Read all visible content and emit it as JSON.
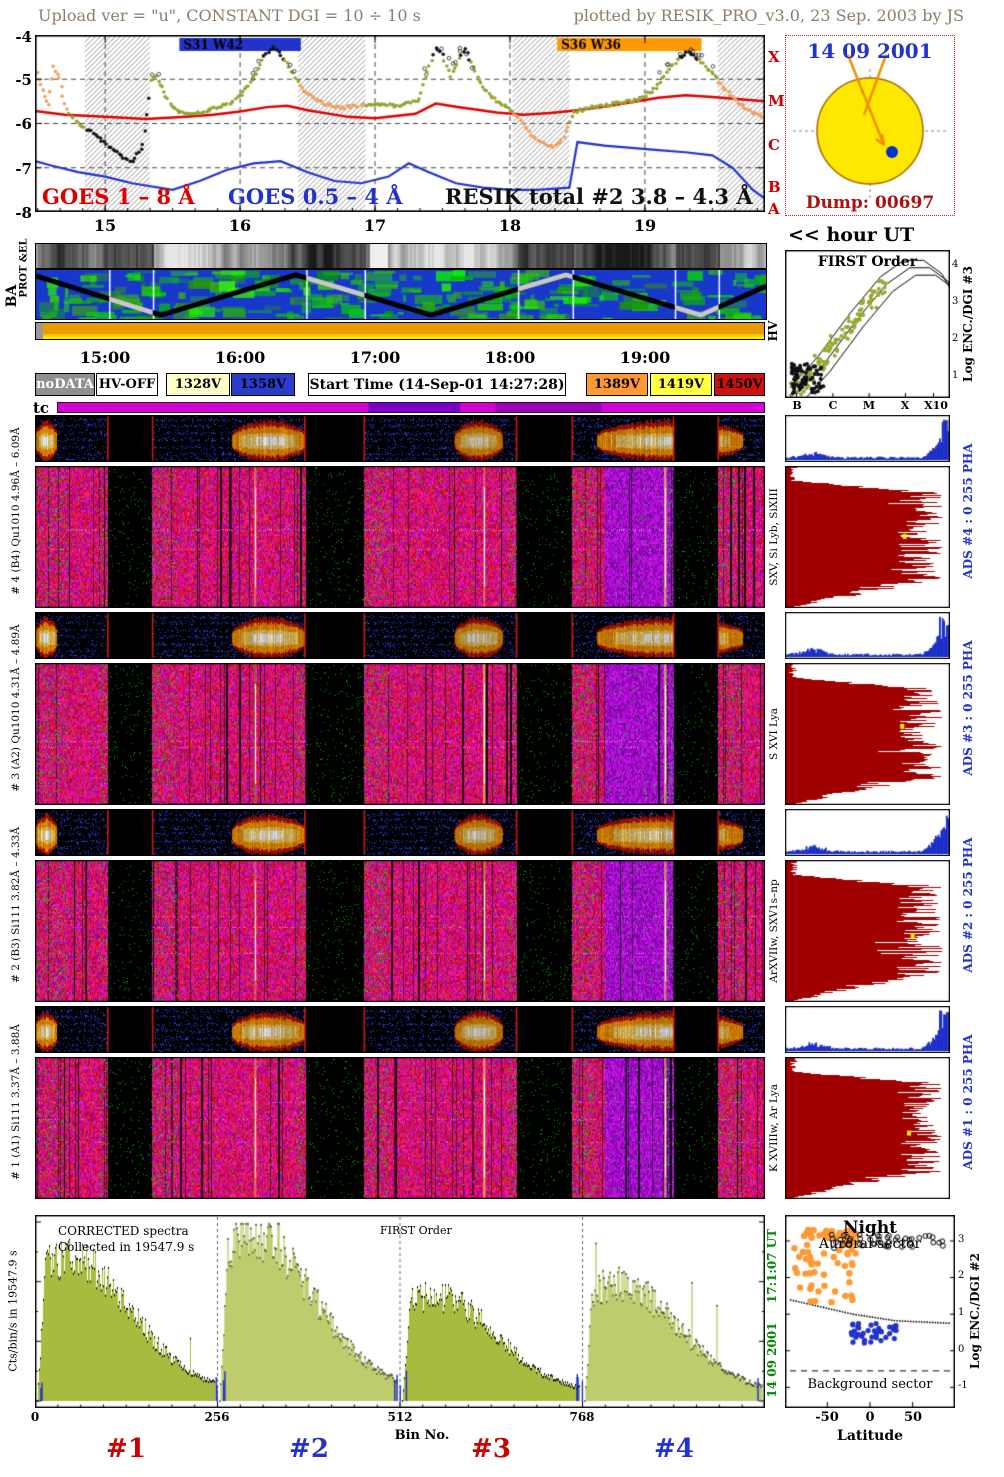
{
  "header": {
    "left": "Upload ver = \"u\", CONSTANT  DGI =  10 ÷  10 s",
    "right": "plotted by RESIK_PRO_v3.0, 23 Sep. 2003 by JS"
  },
  "goes": {
    "y_ticks": [
      "-4",
      "-5",
      "-6",
      "-7",
      "-8"
    ],
    "x_ticks": [
      "15",
      "16",
      "17",
      "18",
      "19"
    ],
    "class_letters": [
      "X",
      "M",
      "C",
      "B",
      "A"
    ],
    "flare_bars": [
      {
        "label": "S31 W42",
        "color": "#2233cc",
        "start_hour": 15.55,
        "end_hour": 16.45
      },
      {
        "label": "S36 W36",
        "color": "#ff9900",
        "start_hour": 18.35,
        "end_hour": 19.42
      }
    ],
    "series_labels": [
      {
        "label": "GOES 1 – 8 Å",
        "color": "#dd0000"
      },
      {
        "label": "GOES 0.5 – 4 Å",
        "color": "#2233cc"
      },
      {
        "label": "RESIK total #2  3.8 – 4.3 Å",
        "color": "#111111"
      }
    ]
  },
  "sun": {
    "date": "14 09 2001",
    "dump": "Dump: 00697"
  },
  "hour_ut_label": "<< hour UT",
  "strips": {
    "prot_label": "PROT &EL",
    "ba_label": "BA",
    "hv_label": "HV"
  },
  "time_ticks": [
    "15:00",
    "16:00",
    "17:00",
    "18:00",
    "19:00"
  ],
  "legend": {
    "boxes": [
      {
        "label": "noDATA",
        "bg": "#909090",
        "fg": "#ffffff"
      },
      {
        "label": "HV-OFF",
        "bg": "#ffffff",
        "fg": "#000000"
      },
      {
        "label": "1328V",
        "bg": "#ffffc8",
        "fg": "#000000"
      },
      {
        "label": "1358V",
        "bg": "#2a3ccc",
        "fg": "#000000"
      },
      {
        "label": "Start Time (14-Sep-01 14:27:28)",
        "bg": "#ffffff",
        "fg": "#000000"
      },
      {
        "label": "1389V",
        "bg": "#ff9933",
        "fg": "#000000"
      },
      {
        "label": "1419V",
        "bg": "#ffff44",
        "fg": "#000000"
      },
      {
        "label": "1450V",
        "bg": "#cc1111",
        "fg": "#000000"
      }
    ]
  },
  "tc_label": "tc",
  "spectrograms": {
    "pairs": [
      {
        "id": 4,
        "label": "# 4 (B4) Qu1010 4.96Å – 6.09Å",
        "line_label": "SXV, Si Lyb, SiXIII",
        "ads_label": "ADS #4 :      0 255      PHA"
      },
      {
        "id": 3,
        "label": "# 3 (A2) Qu1010 4.31Å – 4.89Å",
        "line_label": "S XVI Lya",
        "ads_label": "ADS #3 :      0 255      PHA"
      },
      {
        "id": 2,
        "label": "# 2 (B3) Si111 3.82Å – 4.33Å",
        "line_label": "ArXVIIw, SXV1s–np",
        "ads_label": "ADS #2 :      0 255      PHA"
      },
      {
        "id": 1,
        "label": "# 1 (A1) Si111 3.37Å – 3.88Å",
        "line_label": "K XVIIIw, Ar Lya",
        "ads_label": "ADS #1 :      0 255      PHA"
      }
    ]
  },
  "first_order": {
    "title": "FIRST Order",
    "x_labels": [
      "B",
      "C",
      "M",
      "X",
      "X10"
    ],
    "y_ticks": [
      "4",
      "3",
      "2",
      "1"
    ],
    "y_label": "Log ENC./DGI #3"
  },
  "bottom_spectra": {
    "title1": "CORRECTED spectra",
    "title2": "Collected in 19547.9 s",
    "title3": "FIRST Order",
    "y_label": "Cts/bin/s in 19547.9 s",
    "x_ticks": [
      "0",
      "256",
      "512",
      "768"
    ],
    "x_label": "Bin No.",
    "segment_labels": [
      {
        "label": "#1",
        "color": "#cc0000"
      },
      {
        "label": "#2",
        "color": "#2233cc"
      },
      {
        "label": "#3",
        "color": "#cc0000"
      },
      {
        "label": "#4",
        "color": "#2233cc"
      }
    ]
  },
  "green_side_texts": [
    "17:1:07 UT",
    "14 09 2001"
  ],
  "aurora": {
    "title": "Night",
    "subtitle": "Auroral sector",
    "background_label": "Background sector",
    "x_ticks": [
      "-50",
      "0",
      "50"
    ],
    "x_label": "Latitude",
    "y_ticks": [
      "3",
      "2",
      "1",
      "0",
      "-1"
    ],
    "y_label": "Log ENC./DGI #2"
  },
  "chart_data": {
    "goes_panel": {
      "type": "line",
      "x_unit": "hour UT",
      "x_range": [
        14.48,
        19.89
      ],
      "y_unit": "log10 flux, GOES class A-X",
      "y_range": [
        -8,
        -4
      ],
      "night_bands_hours": [
        [
          14.85,
          15.33
        ],
        [
          16.43,
          16.93
        ],
        [
          18.02,
          18.44
        ],
        [
          19.54,
          19.89
        ]
      ],
      "series": [
        {
          "name": "GOES 1 - 8 A",
          "color": "#dd0000",
          "x": [
            14.48,
            14.7,
            15.0,
            15.3,
            15.6,
            15.8,
            16.0,
            16.2,
            16.35,
            16.5,
            16.8,
            17.0,
            17.3,
            17.45,
            17.6,
            17.9,
            18.1,
            18.3,
            18.5,
            18.7,
            18.9,
            19.1,
            19.3,
            19.5,
            19.7,
            19.89
          ],
          "y": [
            -5.72,
            -5.8,
            -5.85,
            -5.9,
            -5.85,
            -5.8,
            -5.73,
            -5.63,
            -5.6,
            -5.7,
            -5.85,
            -5.88,
            -5.78,
            -5.55,
            -5.62,
            -5.75,
            -5.8,
            -5.76,
            -5.7,
            -5.62,
            -5.52,
            -5.42,
            -5.36,
            -5.4,
            -5.45,
            -5.5
          ]
        },
        {
          "name": "GOES 0.5 - 4 A",
          "color": "#2233cc",
          "x": [
            14.48,
            14.6,
            14.8,
            15.0,
            15.2,
            15.5,
            15.7,
            15.9,
            16.1,
            16.3,
            16.5,
            16.7,
            16.9,
            17.1,
            17.25,
            17.4,
            17.6,
            17.8,
            18.0,
            18.2,
            18.44,
            18.5,
            18.7,
            18.9,
            19.1,
            19.3,
            19.5,
            19.65,
            19.8,
            19.89
          ],
          "y": [
            -6.85,
            -6.95,
            -7.1,
            -7.2,
            -7.35,
            -7.5,
            -7.3,
            -7.05,
            -6.9,
            -6.85,
            -7.1,
            -7.3,
            -7.35,
            -7.2,
            -6.9,
            -7.1,
            -7.35,
            -7.45,
            -7.5,
            -7.5,
            -7.45,
            -6.42,
            -6.5,
            -6.55,
            -6.6,
            -6.65,
            -6.72,
            -7.0,
            -7.5,
            -7.7
          ]
        },
        {
          "name": "RESIK total #2 3.8 - 4.3 A",
          "style": "dots",
          "color": "#96a432",
          "x": [
            14.5,
            14.54,
            14.58,
            14.62,
            14.66,
            14.7,
            14.75,
            14.8,
            14.88,
            14.96,
            15.04,
            15.12,
            15.2,
            15.28,
            15.34,
            15.38,
            15.42,
            15.48,
            15.55,
            15.65,
            15.75,
            15.85,
            15.95,
            16.05,
            16.12,
            16.18,
            16.24,
            16.3,
            16.38,
            16.46,
            16.55,
            16.65,
            16.75,
            16.85,
            16.95,
            17.05,
            17.15,
            17.25,
            17.33,
            17.4,
            17.45,
            17.5,
            17.56,
            17.62,
            17.67,
            17.73,
            17.8,
            17.9,
            18.0,
            18.08,
            18.16,
            18.24,
            18.32,
            18.4,
            18.48,
            18.58,
            18.68,
            18.78,
            18.88,
            18.98,
            19.08,
            19.16,
            19.24,
            19.32,
            19.42,
            19.52,
            19.62,
            19.72,
            19.82,
            19.89
          ],
          "y": [
            -4.85,
            -5.25,
            -5.6,
            -4.7,
            -5.0,
            -5.55,
            -5.85,
            -6.0,
            -6.15,
            -6.35,
            -6.55,
            -6.75,
            -6.85,
            -6.5,
            -5.05,
            -4.95,
            -5.2,
            -5.55,
            -5.75,
            -5.8,
            -5.72,
            -5.62,
            -5.5,
            -5.2,
            -4.85,
            -4.5,
            -4.28,
            -4.45,
            -4.8,
            -5.2,
            -5.45,
            -5.58,
            -5.65,
            -5.62,
            -5.58,
            -5.55,
            -5.6,
            -5.55,
            -5.45,
            -4.7,
            -4.3,
            -4.45,
            -4.95,
            -4.55,
            -4.32,
            -4.75,
            -5.2,
            -5.5,
            -5.68,
            -5.95,
            -6.25,
            -6.45,
            -6.55,
            -6.3,
            -5.75,
            -5.65,
            -5.6,
            -5.55,
            -5.5,
            -5.42,
            -5.2,
            -4.85,
            -4.55,
            -4.38,
            -4.6,
            -4.95,
            -5.3,
            -5.6,
            -5.78,
            -5.85
          ]
        }
      ]
    },
    "ba_zigzag": [
      [
        0,
        0.12
      ],
      [
        0.171,
        0.92
      ],
      [
        0.356,
        0.1
      ],
      [
        0.541,
        0.92
      ],
      [
        0.726,
        0.1
      ],
      [
        0.911,
        0.92
      ],
      [
        1.0,
        0.33
      ]
    ],
    "spectrogram_time_axis": {
      "gap_fractions": [
        [
          0.1,
          0.16
        ],
        [
          0.37,
          0.45
        ],
        [
          0.66,
          0.735
        ],
        [
          0.875,
          0.935
        ]
      ],
      "flare_fractions": [
        [
          0.0,
          0.03
        ],
        [
          0.27,
          0.37
        ],
        [
          0.575,
          0.64
        ],
        [
          0.77,
          0.97
        ]
      ]
    },
    "ads_pha": {
      "x_range": [
        0,
        255
      ],
      "blue_peak_fraction": 0.95
    },
    "first_order_curve": [
      [
        0.03,
        0.93
      ],
      [
        0.2,
        0.72
      ],
      [
        0.4,
        0.42
      ],
      [
        0.58,
        0.18
      ],
      [
        0.72,
        0.07
      ],
      [
        0.84,
        0.07
      ],
      [
        0.95,
        0.16
      ],
      [
        1.0,
        0.26
      ]
    ],
    "corrected_spectra": {
      "type": "area",
      "x_label": "Bin No.",
      "collected_seconds": 19547.9,
      "segments": [
        {
          "label": "#1",
          "bins": [
            0,
            255
          ],
          "peak_rel": 0.8
        },
        {
          "label": "#2",
          "bins": [
            256,
            511
          ],
          "peak_rel": 0.92
        },
        {
          "label": "#3",
          "bins": [
            512,
            767
          ],
          "peak_rel": 0.58
        },
        {
          "label": "#4",
          "bins": [
            768,
            1023
          ],
          "peak_rel": 0.65
        }
      ]
    },
    "aurora_scatter": {
      "type": "scatter",
      "x_label": "Latitude",
      "x_range": [
        -95,
        95
      ],
      "y_label": "Log ENC./DGI #2",
      "y_range": [
        -1.4,
        3.6
      ],
      "background_level": -0.55,
      "background_curve": [
        [
          -95,
          1.4
        ],
        [
          -20,
          1.0
        ],
        [
          30,
          0.82
        ],
        [
          95,
          0.75
        ]
      ],
      "clusters": [
        {
          "name": "auroral-orange",
          "color": "#ff9933",
          "lat_range": [
            -90,
            -15
          ],
          "enc_range": [
            1.2,
            3.3
          ],
          "n": 75
        },
        {
          "name": "night-black",
          "color": "#000000",
          "marker": "circle",
          "lat_range": [
            -45,
            88
          ],
          "enc_range": [
            2.8,
            3.2
          ],
          "n": 45
        },
        {
          "name": "background-blue",
          "color": "#2233cc",
          "lat_range": [
            -22,
            33
          ],
          "enc_range": [
            0.2,
            0.75
          ],
          "n": 40
        }
      ]
    }
  }
}
